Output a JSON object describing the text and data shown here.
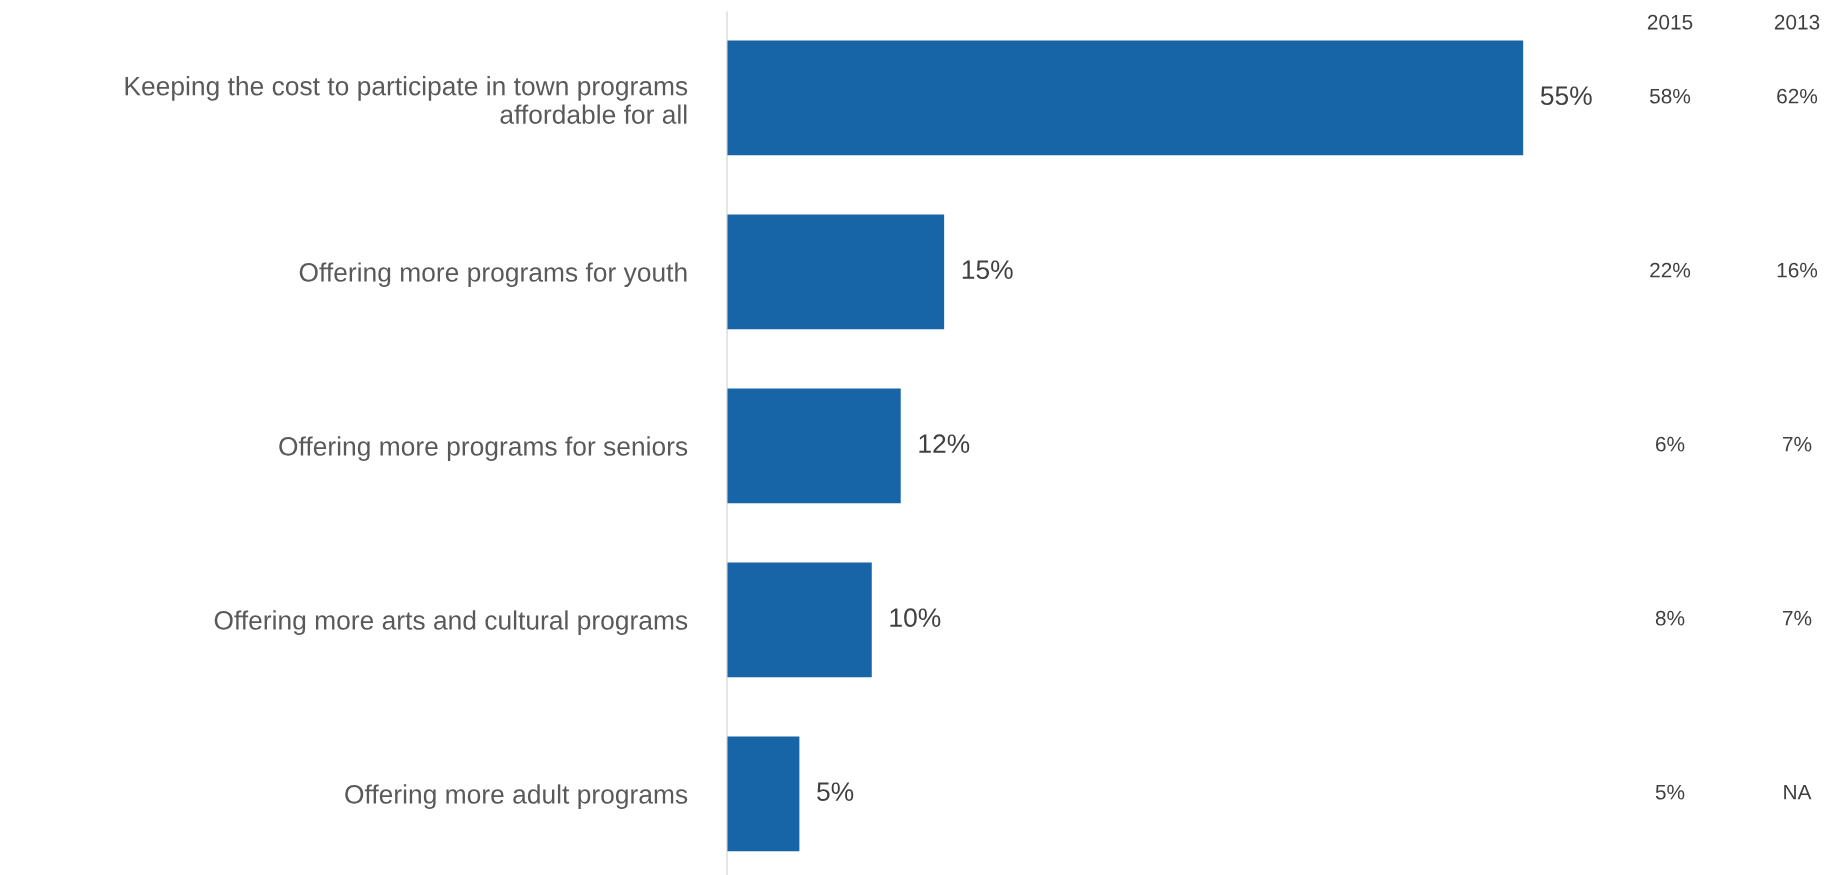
{
  "chart_data": {
    "type": "bar",
    "orientation": "horizontal",
    "categories": [
      "Keeping the cost to participate in town programs\naffordable for all",
      "Offering more programs for youth",
      "Offering more programs for seniors",
      "Offering more arts and cultural programs",
      "Offering more adult programs"
    ],
    "values": [
      55,
      15,
      12,
      10,
      5
    ],
    "color": "#1764a7",
    "data_labels": true,
    "value_labels": [
      "55%",
      "15%",
      "12%",
      "10%",
      "5%"
    ],
    "grid": false,
    "legend": false,
    "annotations": [
      "2015",
      "2013",
      "58%",
      "62%",
      "22%",
      "16%",
      "6%",
      "7%",
      "8%",
      "7%",
      "5%",
      "NA"
    ]
  }
}
